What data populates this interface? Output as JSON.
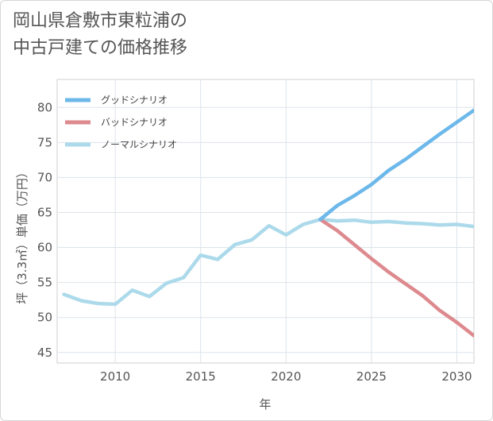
{
  "title_lines": [
    "岡山県倉敷市東粒浦の",
    "中古戸建ての価格推移"
  ],
  "chart_data": {
    "type": "line",
    "title": "岡山県倉敷市東粒浦の中古戸建ての価格推移",
    "xlabel": "年",
    "ylabel": "坪（3.3㎡）単価（万円）",
    "xlim": [
      2006.6,
      2031
    ],
    "ylim": [
      43.5,
      84
    ],
    "xticks": [
      2010,
      2015,
      2020,
      2025,
      2030
    ],
    "yticks": [
      45,
      50,
      55,
      60,
      65,
      70,
      75,
      80
    ],
    "grid": true,
    "legend_position": "top-left",
    "series": [
      {
        "name": "グッドシナリオ",
        "color": "#6cb8ea",
        "width": 4.5,
        "x": [
          2022,
          2023,
          2024,
          2025,
          2026,
          2027,
          2028,
          2029,
          2030,
          2031
        ],
        "y": [
          64.0,
          66.0,
          67.4,
          69.0,
          71.0,
          72.6,
          74.4,
          76.2,
          77.9,
          79.6
        ]
      },
      {
        "name": "バッドシナリオ",
        "color": "#dd8a8f",
        "width": 4.5,
        "x": [
          2022,
          2023,
          2024,
          2025,
          2026,
          2027,
          2028,
          2029,
          2030,
          2031
        ],
        "y": [
          64.0,
          62.4,
          60.4,
          58.4,
          56.5,
          54.8,
          53.1,
          51.0,
          49.3,
          47.4
        ]
      },
      {
        "name": "ノーマルシナリオ",
        "color": "#acdaeb",
        "width": 4.5,
        "x": [
          2007,
          2008,
          2009,
          2010,
          2011,
          2012,
          2013,
          2014,
          2015,
          2016,
          2017,
          2018,
          2019,
          2020,
          2021,
          2022,
          2023,
          2024,
          2025,
          2026,
          2027,
          2028,
          2029,
          2030,
          2031
        ],
        "y": [
          53.3,
          52.4,
          52.0,
          51.9,
          53.9,
          53.0,
          54.9,
          55.7,
          58.9,
          58.3,
          60.4,
          61.1,
          63.1,
          61.8,
          63.3,
          64.0,
          63.8,
          63.9,
          63.6,
          63.7,
          63.5,
          63.4,
          63.2,
          63.3,
          63.0
        ]
      }
    ]
  }
}
